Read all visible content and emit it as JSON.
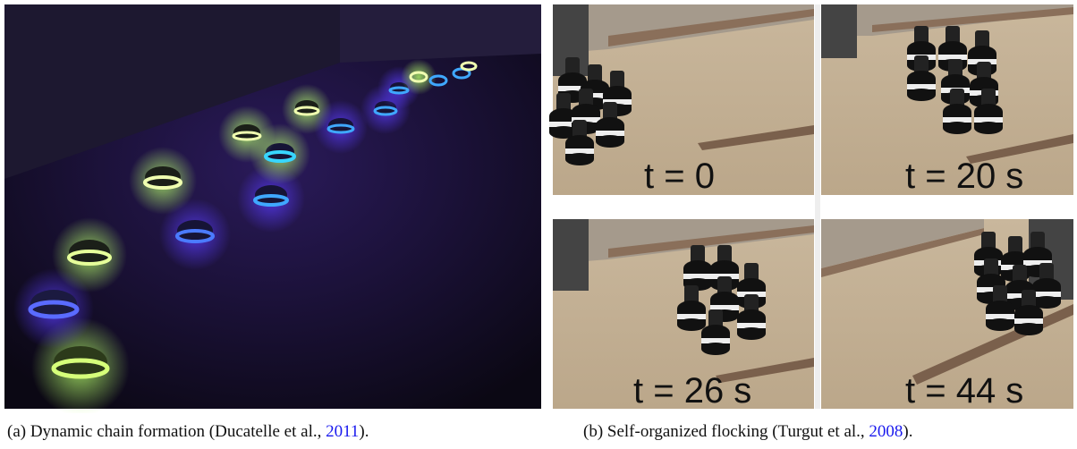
{
  "panels": [
    {
      "caption": {
        "prefix": "(a) Dynamic chain formation (Ducatelle et al., ",
        "year": "2011",
        "suffix": ")."
      }
    },
    {
      "caption": {
        "prefix": "(b) Self-organized flocking (Turgut et al., ",
        "year": "2008",
        "suffix": ")."
      },
      "frames": [
        "t = 0",
        "t = 20 s",
        "t = 26 s",
        "t = 44 s"
      ]
    }
  ]
}
